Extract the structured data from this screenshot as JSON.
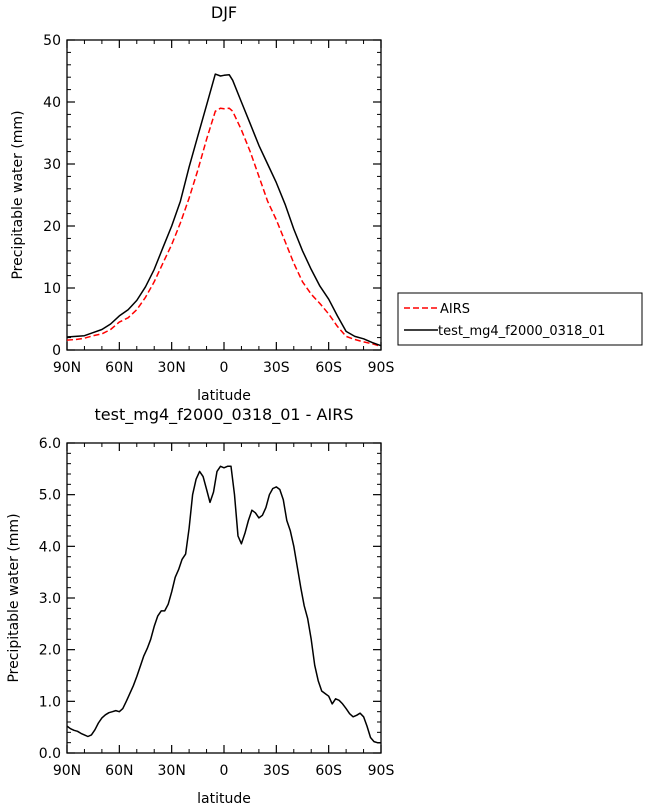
{
  "chart_data": [
    {
      "type": "line",
      "title": "DJF",
      "xlabel": "latitude",
      "ylabel": "Precipitable water (mm)",
      "xlim": [
        90,
        -90
      ],
      "ylim": [
        0,
        50
      ],
      "x_ticks": [
        90,
        60,
        30,
        0,
        -30,
        -60,
        -90
      ],
      "x_tick_labels": [
        "90N",
        "60N",
        "30N",
        "0",
        "30S",
        "60S",
        "90S"
      ],
      "y_ticks": [
        0,
        10,
        20,
        30,
        40,
        50
      ],
      "y_tick_labels": [
        "0",
        "10",
        "20",
        "30",
        "40",
        "50"
      ],
      "grid": false,
      "legend": {
        "placement": "right"
      },
      "series": [
        {
          "name": "AIRS",
          "color": "#ff0000",
          "dash": "dashed",
          "x": [
            90,
            85,
            80,
            75,
            70,
            65,
            60,
            55,
            50,
            45,
            40,
            35,
            30,
            25,
            20,
            15,
            10,
            5,
            2,
            0,
            -3,
            -5,
            -10,
            -15,
            -20,
            -25,
            -30,
            -35,
            -40,
            -45,
            -50,
            -55,
            -60,
            -65,
            -70,
            -75,
            -80,
            -85,
            -90
          ],
          "y": [
            1.6,
            1.7,
            1.9,
            2.3,
            2.6,
            3.3,
            4.5,
            5.2,
            6.5,
            8.5,
            11,
            14,
            17,
            20.5,
            24.5,
            29,
            34,
            38.5,
            39.0,
            38.9,
            39.0,
            38.5,
            35.5,
            32,
            28,
            24,
            21,
            17.5,
            14,
            11,
            9,
            7.5,
            5.8,
            3.8,
            2.2,
            1.7,
            1.3,
            1.0,
            0.6
          ]
        },
        {
          "name": "test_mg4_f2000_0318_01",
          "color": "#000000",
          "dash": "solid",
          "x": [
            90,
            85,
            80,
            75,
            70,
            65,
            60,
            55,
            50,
            45,
            40,
            35,
            30,
            25,
            20,
            15,
            10,
            5,
            2,
            0,
            -3,
            -5,
            -10,
            -15,
            -20,
            -25,
            -30,
            -35,
            -40,
            -45,
            -50,
            -55,
            -60,
            -65,
            -70,
            -75,
            -80,
            -85,
            -90
          ],
          "y": [
            2.1,
            2.2,
            2.3,
            2.8,
            3.3,
            4.2,
            5.5,
            6.5,
            8,
            10.2,
            13,
            16.5,
            20,
            24,
            29.5,
            34.5,
            39.5,
            44.5,
            44.2,
            44.3,
            44.4,
            43.5,
            40,
            36.5,
            33,
            30,
            27,
            23.5,
            19.5,
            16,
            13,
            10.3,
            8.2,
            5.5,
            3.0,
            2.2,
            1.8,
            1.2,
            0.7
          ]
        }
      ]
    },
    {
      "type": "line",
      "title": "test_mg4_f2000_0318_01 - AIRS",
      "xlabel": "latitude",
      "ylabel": "Precipitable water (mm)",
      "xlim": [
        90,
        -90
      ],
      "ylim": [
        0,
        6
      ],
      "x_ticks": [
        90,
        60,
        30,
        0,
        -30,
        -60,
        -90
      ],
      "x_tick_labels": [
        "90N",
        "60N",
        "30N",
        "0",
        "30S",
        "60S",
        "90S"
      ],
      "y_ticks": [
        0,
        1,
        2,
        3,
        4,
        5,
        6
      ],
      "y_tick_labels": [
        "0.0",
        "1.0",
        "2.0",
        "3.0",
        "4.0",
        "5.0",
        "6.0"
      ],
      "grid": false,
      "series": [
        {
          "color": "#000000",
          "dash": "solid",
          "x": [
            90,
            88,
            86,
            84,
            82,
            80,
            78,
            76,
            74,
            72,
            70,
            68,
            66,
            64,
            62,
            60,
            58,
            56,
            54,
            52,
            50,
            48,
            46,
            44,
            42,
            40,
            38,
            36,
            34,
            32,
            30,
            28,
            26,
            24,
            22,
            20,
            18,
            16,
            14,
            12,
            10,
            8,
            6,
            4,
            2,
            0,
            -2,
            -4,
            -6,
            -8,
            -10,
            -12,
            -14,
            -16,
            -18,
            -20,
            -22,
            -24,
            -26,
            -28,
            -30,
            -32,
            -34,
            -36,
            -38,
            -40,
            -42,
            -44,
            -46,
            -48,
            -50,
            -52,
            -54,
            -56,
            -58,
            -60,
            -62,
            -64,
            -66,
            -68,
            -70,
            -72,
            -74,
            -76,
            -78,
            -80,
            -82,
            -84,
            -86,
            -88,
            -90
          ],
          "y": [
            0.52,
            0.47,
            0.44,
            0.42,
            0.38,
            0.35,
            0.32,
            0.35,
            0.45,
            0.58,
            0.68,
            0.74,
            0.78,
            0.8,
            0.82,
            0.8,
            0.86,
            1.0,
            1.15,
            1.3,
            1.48,
            1.68,
            1.88,
            2.02,
            2.2,
            2.45,
            2.65,
            2.75,
            2.75,
            2.88,
            3.12,
            3.4,
            3.55,
            3.75,
            3.85,
            4.35,
            5.0,
            5.3,
            5.45,
            5.35,
            5.1,
            4.85,
            5.05,
            5.45,
            5.55,
            5.52,
            5.55,
            5.55,
            5.0,
            4.2,
            4.05,
            4.25,
            4.5,
            4.7,
            4.65,
            4.55,
            4.6,
            4.75,
            5.0,
            5.12,
            5.15,
            5.1,
            4.9,
            4.5,
            4.3,
            4.0,
            3.6,
            3.2,
            2.85,
            2.6,
            2.2,
            1.7,
            1.4,
            1.2,
            1.15,
            1.1,
            0.95,
            1.05,
            1.02,
            0.95,
            0.86,
            0.76,
            0.7,
            0.73,
            0.77,
            0.7,
            0.52,
            0.3,
            0.22,
            0.2,
            0.2
          ]
        }
      ]
    }
  ]
}
